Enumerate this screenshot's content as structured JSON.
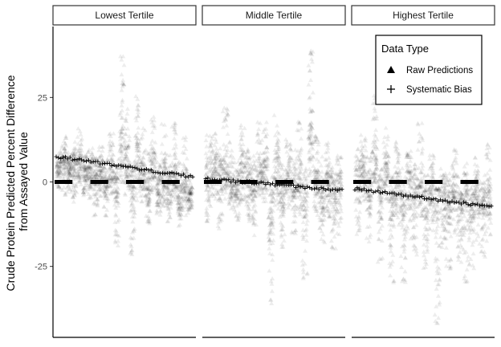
{
  "chart_data": {
    "type": "scatter",
    "ylabel": [
      "Crude Protein Predicted Percent Difference",
      "from Assayed Value"
    ],
    "xlabel": "",
    "ylim": [
      -46,
      46
    ],
    "yticks": [
      -25,
      0,
      25
    ],
    "grid": false,
    "legend": {
      "title": "Data Type",
      "placement": "top-right",
      "entries": [
        {
          "label": "Raw Predictions",
          "symbol": "triangle"
        },
        {
          "label": "Systematic Bias",
          "symbol": "plus"
        }
      ]
    },
    "panels": [
      {
        "label": "Lowest Tertile",
        "bias_trend": [
          7.5,
          1.5
        ],
        "zero_segments": 4,
        "group_profile": [
          [
            4,
            10,
            -2
          ],
          [
            6,
            14,
            -4
          ],
          [
            3,
            9,
            -3
          ],
          [
            5,
            12,
            -6
          ],
          [
            4,
            16,
            -2
          ],
          [
            2,
            8,
            -4
          ],
          [
            3,
            10,
            -5
          ],
          [
            1,
            8,
            -10
          ],
          [
            2,
            12,
            -5
          ],
          [
            0,
            7,
            -12
          ],
          [
            2,
            15,
            -4
          ],
          [
            -2,
            7,
            -20
          ],
          [
            10,
            38,
            0
          ],
          [
            5,
            22,
            -4
          ],
          [
            -3,
            6,
            -26
          ],
          [
            6,
            28,
            -6
          ],
          [
            2,
            16,
            -6
          ],
          [
            -3,
            10,
            -14
          ],
          [
            4,
            20,
            -4
          ],
          [
            -2,
            6,
            -10
          ],
          [
            1,
            18,
            -8
          ],
          [
            -2,
            8,
            -12
          ],
          [
            2,
            18,
            -6
          ],
          [
            -5,
            6,
            -14
          ],
          [
            0,
            14,
            -10
          ],
          [
            -4,
            2,
            -10
          ]
        ]
      },
      {
        "label": "Middle Tertile",
        "bias_trend": [
          1,
          -2.5
        ],
        "zero_segments": 4,
        "group_profile": [
          [
            2,
            14,
            -12
          ],
          [
            4,
            16,
            -6
          ],
          [
            0,
            10,
            -14
          ],
          [
            3,
            22,
            -5
          ],
          [
            0,
            12,
            -8
          ],
          [
            -2,
            6,
            -12
          ],
          [
            4,
            18,
            -6
          ],
          [
            0,
            10,
            -12
          ],
          [
            -2,
            8,
            -16
          ],
          [
            2,
            20,
            -4
          ],
          [
            3,
            18,
            -6
          ],
          [
            -10,
            2,
            -36
          ],
          [
            2,
            20,
            -8
          ],
          [
            -4,
            6,
            -22
          ],
          [
            1,
            14,
            -8
          ],
          [
            -1,
            10,
            -16
          ],
          [
            0,
            18,
            -10
          ],
          [
            -6,
            4,
            -30
          ],
          [
            12,
            40,
            0
          ],
          [
            0,
            14,
            -10
          ],
          [
            -4,
            8,
            -18
          ],
          [
            0,
            12,
            -12
          ],
          [
            -3,
            6,
            -20
          ],
          [
            -1,
            8,
            -16
          ]
        ]
      },
      {
        "label": "Highest Tertile",
        "bias_trend": [
          -2,
          -7.5
        ],
        "zero_segments": 4,
        "group_profile": [
          [
            0,
            10,
            -16
          ],
          [
            2,
            16,
            -6
          ],
          [
            -3,
            8,
            -18
          ],
          [
            6,
            26,
            0
          ],
          [
            -4,
            4,
            -24
          ],
          [
            2,
            16,
            -6
          ],
          [
            -8,
            2,
            -30
          ],
          [
            -2,
            12,
            -14
          ],
          [
            -6,
            4,
            -30
          ],
          [
            0,
            10,
            -18
          ],
          [
            -3,
            6,
            -22
          ],
          [
            -4,
            18,
            -10
          ],
          [
            -6,
            2,
            -26
          ],
          [
            -2,
            10,
            -16
          ],
          [
            -8,
            -2,
            -42
          ],
          [
            -3,
            6,
            -20
          ],
          [
            -5,
            4,
            -26
          ],
          [
            -2,
            10,
            -16
          ],
          [
            -6,
            2,
            -24
          ],
          [
            -4,
            6,
            -30
          ],
          [
            -8,
            0,
            -26
          ],
          [
            -3,
            8,
            -20
          ],
          [
            -6,
            2,
            -24
          ],
          [
            -5,
            12,
            -18
          ]
        ]
      }
    ]
  }
}
